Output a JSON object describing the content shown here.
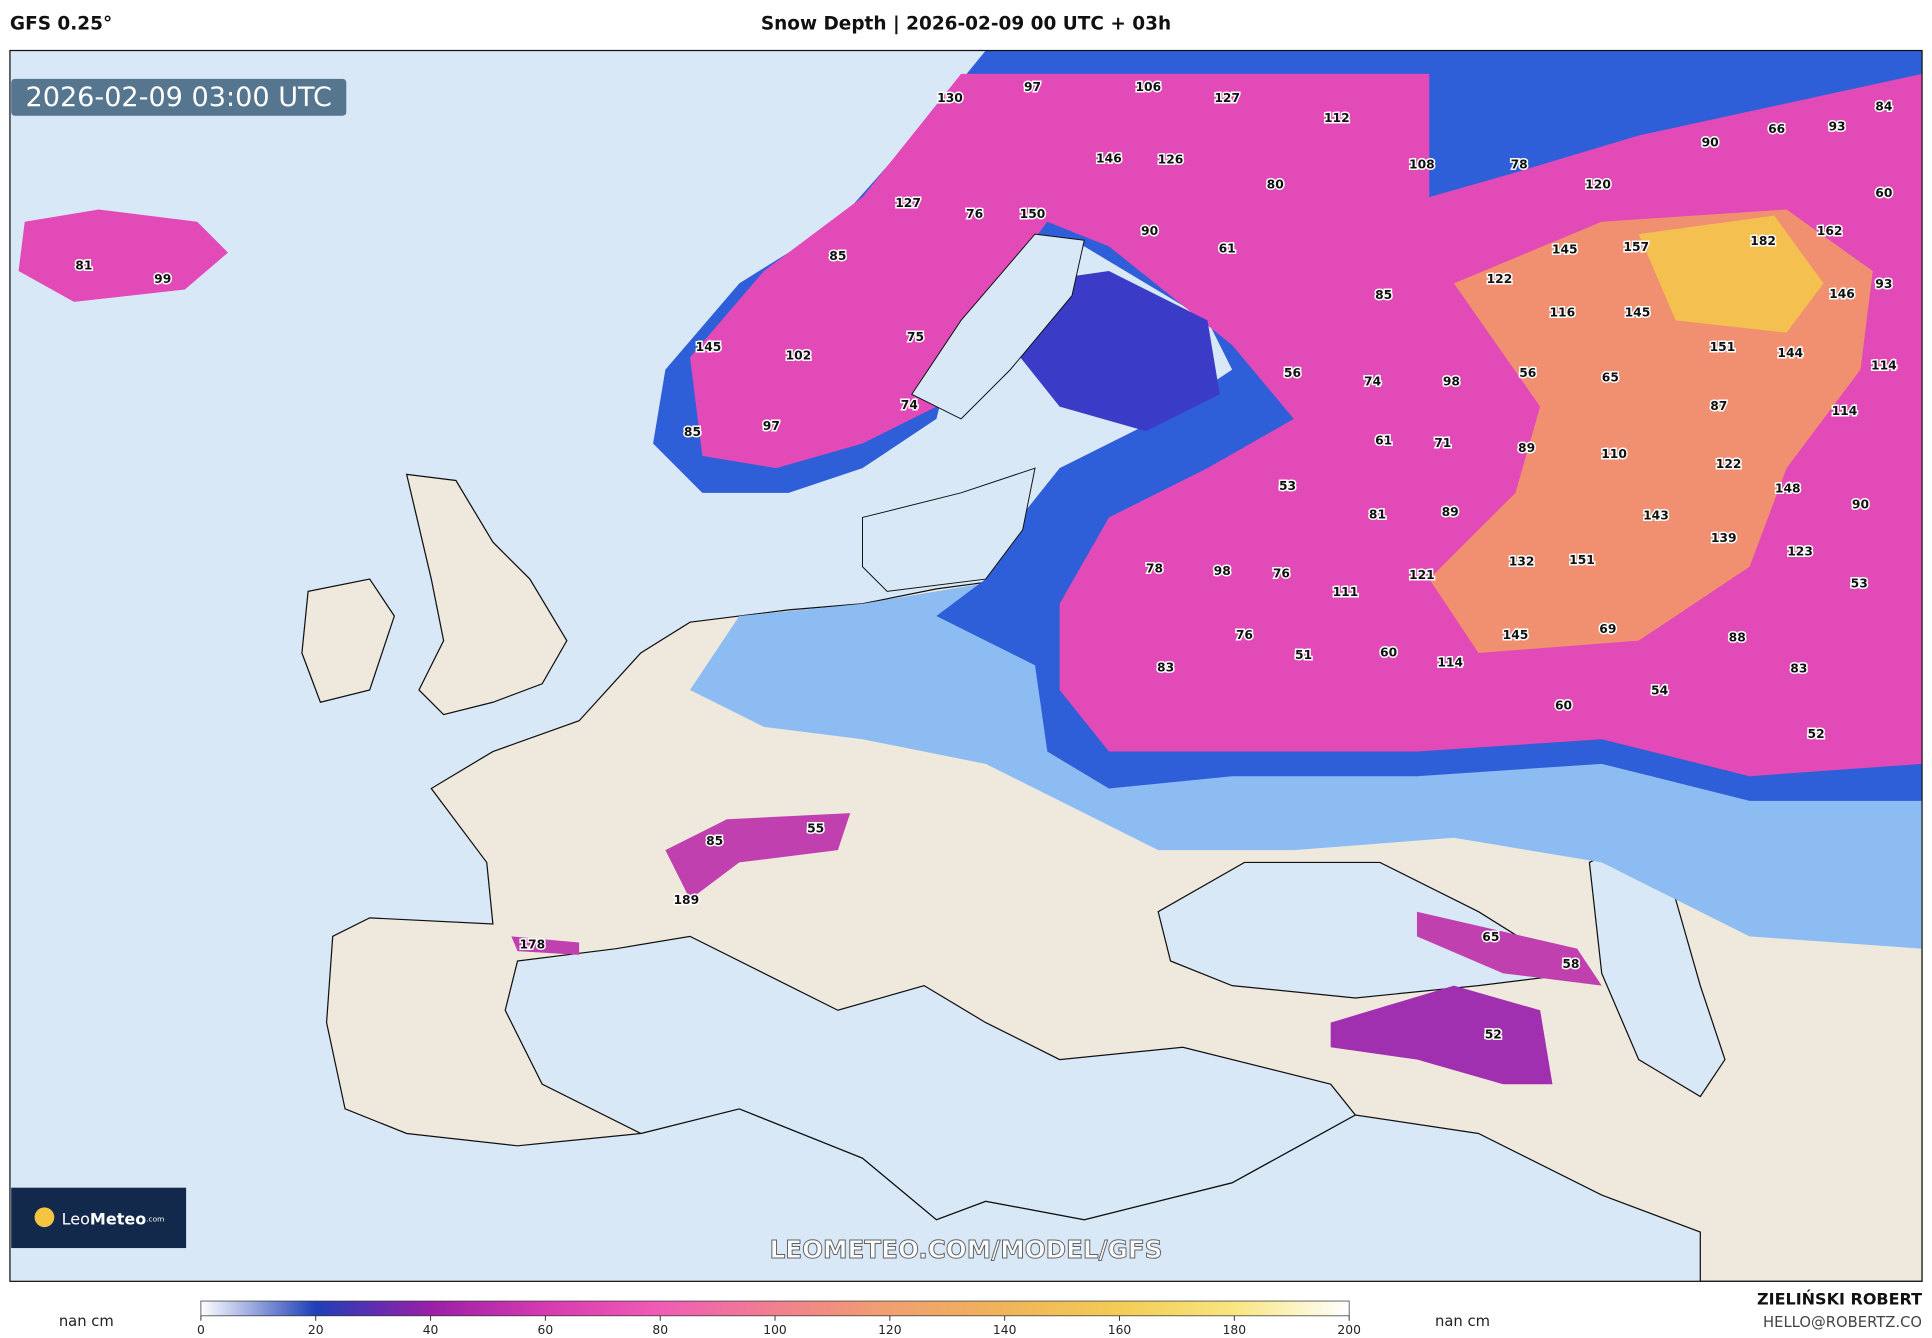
{
  "header": {
    "model": "GFS 0.25°",
    "title": "Snow Depth | 2026-02-09 00 UTC + 03h"
  },
  "map": {
    "valid_time": "2026-02-09 03:00 UTC",
    "watermark": "LEOMETEO.COM/MODEL/GFS",
    "logo": {
      "name_light": "Leo",
      "name_bold": "Meteo",
      "suffix": ".com"
    },
    "labels": [
      81,
      99,
      130,
      97,
      106,
      127,
      112,
      146,
      126,
      108,
      78,
      80,
      120,
      90,
      66,
      93,
      84,
      60,
      127,
      76,
      150,
      90,
      61,
      85,
      145,
      157,
      182,
      162,
      122,
      85,
      93,
      146,
      116,
      145,
      145,
      102,
      75,
      56,
      74,
      98,
      56,
      65,
      151,
      144,
      114,
      85,
      97,
      74,
      87,
      114,
      61,
      71,
      89,
      110,
      122,
      53,
      148,
      90,
      81,
      89,
      143,
      139,
      78,
      98,
      76,
      123,
      132,
      151,
      121,
      111,
      53,
      76,
      51,
      60,
      114,
      145,
      69,
      88,
      83,
      83,
      54,
      60,
      52,
      55,
      85,
      189,
      178,
      65,
      58,
      52
    ]
  },
  "colorbar": {
    "nan_left": "nan cm",
    "nan_right": "nan cm",
    "range": [
      0,
      200
    ],
    "ticks": [
      0,
      20,
      40,
      60,
      80,
      100,
      120,
      140,
      160,
      180,
      200
    ],
    "colors": [
      "#ffffff",
      "#1f3fb8",
      "#9a1fa8",
      "#d63bb0",
      "#f05cb5",
      "#f0808f",
      "#f0a070",
      "#f0b45a",
      "#f3cc55",
      "#f8e680",
      "#ffffff"
    ]
  },
  "footer": {
    "author": "ZIELIŃSKI ROBERT",
    "email": "HELLO@ROBERTZ.CO"
  }
}
